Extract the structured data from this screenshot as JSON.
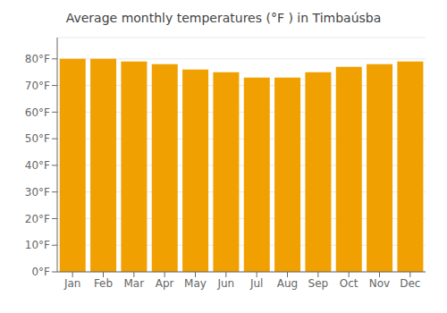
{
  "chart_data": {
    "type": "bar",
    "title": "Average monthly temperatures (°F ) in Timbaúsba",
    "categories": [
      "Jan",
      "Feb",
      "Mar",
      "Apr",
      "May",
      "Jun",
      "Jul",
      "Aug",
      "Sep",
      "Oct",
      "Nov",
      "Dec"
    ],
    "values": [
      80,
      80,
      79,
      78,
      76,
      75,
      73,
      73,
      75,
      77,
      78,
      79
    ],
    "color": "#F0A000",
    "ylim": [
      0,
      88
    ],
    "yticks": [
      {
        "value": 0,
        "label": "0°F"
      },
      {
        "value": 10,
        "label": "10°F"
      },
      {
        "value": 20,
        "label": "20°F"
      },
      {
        "value": 30,
        "label": "30°F"
      },
      {
        "value": 40,
        "label": "40°F"
      },
      {
        "value": 50,
        "label": "50°F"
      },
      {
        "value": 60,
        "label": "60°F"
      },
      {
        "value": 70,
        "label": "70°F"
      },
      {
        "value": 80,
        "label": "80°F"
      }
    ],
    "grid": true
  }
}
